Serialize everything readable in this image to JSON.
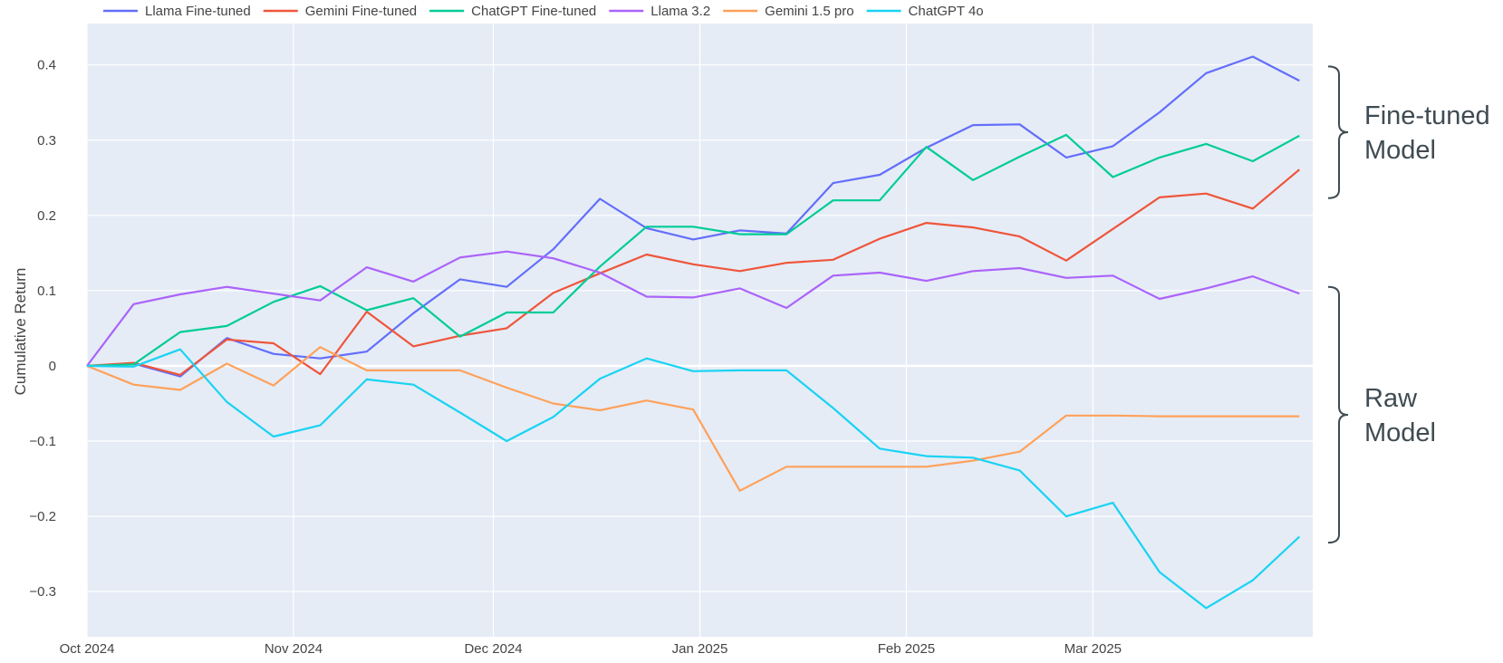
{
  "chart_data": {
    "type": "line",
    "title": "",
    "xlabel": "",
    "ylabel": "Cumulative Return",
    "ylim": [
      -0.36,
      0.455
    ],
    "xlim": [
      "2024-10-01",
      "2025-04-03"
    ],
    "yticks": [
      -0.3,
      -0.2,
      -0.1,
      0,
      0.1,
      0.2,
      0.3,
      0.4
    ],
    "ytick_labels": [
      "−0.3",
      "−0.2",
      "−0.1",
      "0",
      "0.1",
      "0.2",
      "0.3",
      "0.4"
    ],
    "xticks": [
      "2024-10-01",
      "2024-11-01",
      "2024-12-01",
      "2025-01-01",
      "2025-02-01",
      "2025-03-01"
    ],
    "xtick_labels": [
      "Oct 2024",
      "Nov 2024",
      "Dec 2024",
      "Jan 2025",
      "Feb 2025",
      "Mar 2025"
    ],
    "grid": true,
    "legend_position": "top",
    "x": [
      "2024-10-01",
      "2024-10-08",
      "2024-10-15",
      "2024-10-22",
      "2024-10-29",
      "2024-11-05",
      "2024-11-12",
      "2024-11-19",
      "2024-11-26",
      "2024-12-03",
      "2024-12-10",
      "2024-12-17",
      "2024-12-24",
      "2024-12-31",
      "2025-01-07",
      "2025-01-14",
      "2025-01-21",
      "2025-01-28",
      "2025-02-04",
      "2025-02-11",
      "2025-02-18",
      "2025-02-25",
      "2025-03-04",
      "2025-03-11",
      "2025-03-18",
      "2025-03-25",
      "2025-04-01"
    ],
    "series": [
      {
        "name": "Llama Fine-tuned",
        "color": "#636efa",
        "values": [
          0,
          0.003,
          -0.014,
          0.037,
          0.016,
          0.01,
          0.019,
          0.07,
          0.115,
          0.105,
          0.155,
          0.222,
          0.183,
          0.168,
          0.18,
          0.176,
          0.243,
          0.254,
          0.29,
          0.32,
          0.321,
          0.277,
          0.292,
          0.337,
          0.389,
          0.411,
          0.379
        ]
      },
      {
        "name": "Gemini Fine-tuned",
        "color": "#ef553b",
        "values": [
          0,
          0.004,
          -0.012,
          0.035,
          0.03,
          -0.011,
          0.072,
          0.026,
          0.04,
          0.05,
          0.097,
          0.123,
          0.148,
          0.135,
          0.126,
          0.137,
          0.141,
          0.169,
          0.19,
          0.184,
          0.172,
          0.14,
          0.182,
          0.224,
          0.229,
          0.209,
          0.261
        ]
      },
      {
        "name": "ChatGPT Fine-tuned",
        "color": "#00cc96",
        "values": [
          0,
          0.002,
          0.045,
          0.053,
          0.085,
          0.106,
          0.074,
          0.09,
          0.039,
          0.071,
          0.071,
          0.132,
          0.185,
          0.185,
          0.175,
          0.175,
          0.22,
          0.22,
          0.291,
          0.247,
          0.278,
          0.307,
          0.251,
          0.277,
          0.295,
          0.272,
          0.306
        ]
      },
      {
        "name": "Llama 3.2",
        "color": "#ab63fa",
        "values": [
          0,
          0.082,
          0.095,
          0.105,
          0.096,
          0.087,
          0.131,
          0.112,
          0.144,
          0.152,
          0.143,
          0.124,
          0.092,
          0.091,
          0.103,
          0.077,
          0.12,
          0.124,
          0.113,
          0.126,
          0.13,
          0.117,
          0.12,
          0.089,
          0.103,
          0.119,
          0.096
        ]
      },
      {
        "name": "Gemini 1.5 pro",
        "color": "#ffa15a",
        "values": [
          0,
          -0.025,
          -0.032,
          0.003,
          -0.026,
          0.025,
          -0.006,
          -0.006,
          -0.006,
          -0.029,
          -0.05,
          -0.059,
          -0.046,
          -0.058,
          -0.166,
          -0.134,
          -0.134,
          -0.134,
          -0.134,
          -0.126,
          -0.114,
          -0.066,
          -0.066,
          -0.067,
          -0.067,
          -0.067,
          -0.067
        ]
      },
      {
        "name": "ChatGPT 4o",
        "color": "#19d3f3",
        "values": [
          0,
          -0.001,
          0.022,
          -0.048,
          -0.094,
          -0.079,
          -0.018,
          -0.025,
          -0.062,
          -0.1,
          -0.068,
          -0.017,
          0.01,
          -0.007,
          -0.006,
          -0.006,
          -0.056,
          -0.11,
          -0.12,
          -0.122,
          -0.139,
          -0.2,
          -0.182,
          -0.274,
          -0.322,
          -0.285,
          -0.227
        ]
      }
    ],
    "annotations": [
      {
        "text_lines": [
          "Fine-tuned",
          "Model"
        ],
        "brace_range": [
          0.223,
          0.398
        ]
      },
      {
        "text_lines": [
          "Raw",
          "Model"
        ],
        "brace_range": [
          -0.235,
          0.105
        ]
      }
    ]
  }
}
